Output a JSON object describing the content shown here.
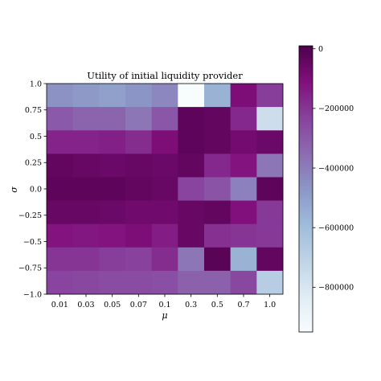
{
  "chart_data": {
    "type": "heatmap",
    "title": "Utility of initial liquidity provider",
    "xlabel": "μ",
    "ylabel": "σ",
    "x_categories": [
      "0.01",
      "0.03",
      "0.05",
      "0.07",
      "0.1",
      "0.3",
      "0.5",
      "0.7",
      "1.0"
    ],
    "y_categories_top_to_bottom": [
      "1.0",
      "0.75",
      "0.5",
      "0.25",
      "0.0",
      "-0.25",
      "-0.5",
      "-0.75",
      "-1.0"
    ],
    "values": [
      [
        -460000,
        -480000,
        -500000,
        -470000,
        -430000,
        -950000,
        -560000,
        -100000,
        -220000
      ],
      [
        -300000,
        -330000,
        -330000,
        -380000,
        -290000,
        -30000,
        -40000,
        -170000,
        -760000
      ],
      [
        -160000,
        -160000,
        -150000,
        -180000,
        -100000,
        -30000,
        -40000,
        -80000,
        -60000
      ],
      [
        -40000,
        -50000,
        -60000,
        -50000,
        -60000,
        -40000,
        -170000,
        -120000,
        -380000
      ],
      [
        -30000,
        -30000,
        -30000,
        -40000,
        -50000,
        -240000,
        -280000,
        -410000,
        -30000
      ],
      [
        -50000,
        -50000,
        -60000,
        -70000,
        -70000,
        -50000,
        -40000,
        -110000,
        -210000
      ],
      [
        -120000,
        -130000,
        -120000,
        -100000,
        -140000,
        -50000,
        -190000,
        -200000,
        -210000
      ],
      [
        -200000,
        -200000,
        -220000,
        -230000,
        -180000,
        -380000,
        -20000,
        -560000,
        -40000
      ],
      [
        -240000,
        -250000,
        -260000,
        -260000,
        -270000,
        -320000,
        -320000,
        -250000,
        -680000
      ]
    ],
    "colorbar": {
      "min": -950000,
      "max": 10000,
      "ticks": [
        0,
        -200000,
        -400000,
        -600000,
        -800000
      ],
      "tick_labels": [
        "0",
        "−200000",
        "−400000",
        "−600000",
        "−800000"
      ],
      "colormap": "BuPu",
      "stops": [
        "#f7fcfd",
        "#e0ecf4",
        "#bfd3e6",
        "#9ebcda",
        "#8c96c6",
        "#8c6bb1",
        "#88419d",
        "#810f7c",
        "#4d004b"
      ]
    },
    "grid": false,
    "legend": "none"
  }
}
